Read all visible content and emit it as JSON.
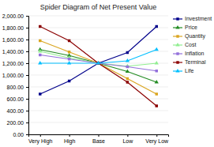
{
  "chart_data": {
    "type": "line",
    "title": "Spider Diagram of Net Present Value",
    "categories": [
      "Very High",
      "High",
      "Base",
      "Low",
      "Very Low"
    ],
    "series": [
      {
        "name": "Investment",
        "color": "#00008B",
        "marker": "square",
        "values": [
          680,
          900,
          1200,
          1380,
          1820
        ]
      },
      {
        "name": "Price",
        "color": "#228B22",
        "marker": "triangle",
        "values": [
          1430,
          1330,
          1200,
          1060,
          880
        ]
      },
      {
        "name": "Quantity",
        "color": "#DAA520",
        "marker": "square",
        "values": [
          1580,
          1390,
          1200,
          940,
          680
        ]
      },
      {
        "name": "Cost",
        "color": "#90EE90",
        "marker": "triangle",
        "values": [
          1400,
          1290,
          1200,
          1150,
          1200
        ]
      },
      {
        "name": "Inflation",
        "color": "#9370DB",
        "marker": "square",
        "values": [
          1340,
          1270,
          1200,
          1140,
          1070
        ]
      },
      {
        "name": "Terminal",
        "color": "#8B0000",
        "marker": "square",
        "values": [
          1820,
          1580,
          1200,
          880,
          480
        ]
      },
      {
        "name": "Life",
        "color": "#00BFFF",
        "marker": "triangle",
        "values": [
          1200,
          1200,
          1200,
          1240,
          1430
        ]
      }
    ],
    "ylim": [
      0,
      2000
    ],
    "yticks": [
      {
        "value": 0,
        "label": "0.00"
      },
      {
        "value": 200,
        "label": "200.00"
      },
      {
        "value": 400,
        "label": "400.00"
      },
      {
        "value": 600,
        "label": "600.00"
      },
      {
        "value": 800,
        "label": "800.00"
      },
      {
        "value": 1000,
        "label": "1,000.00"
      },
      {
        "value": 1200,
        "label": "1,200.00"
      },
      {
        "value": 1400,
        "label": "1,400.00"
      },
      {
        "value": 1600,
        "label": "1,600.00"
      },
      {
        "value": 1800,
        "label": "1,800.00"
      },
      {
        "value": 2000,
        "label": "2,000.00"
      }
    ],
    "grid": true,
    "legend": "right"
  }
}
